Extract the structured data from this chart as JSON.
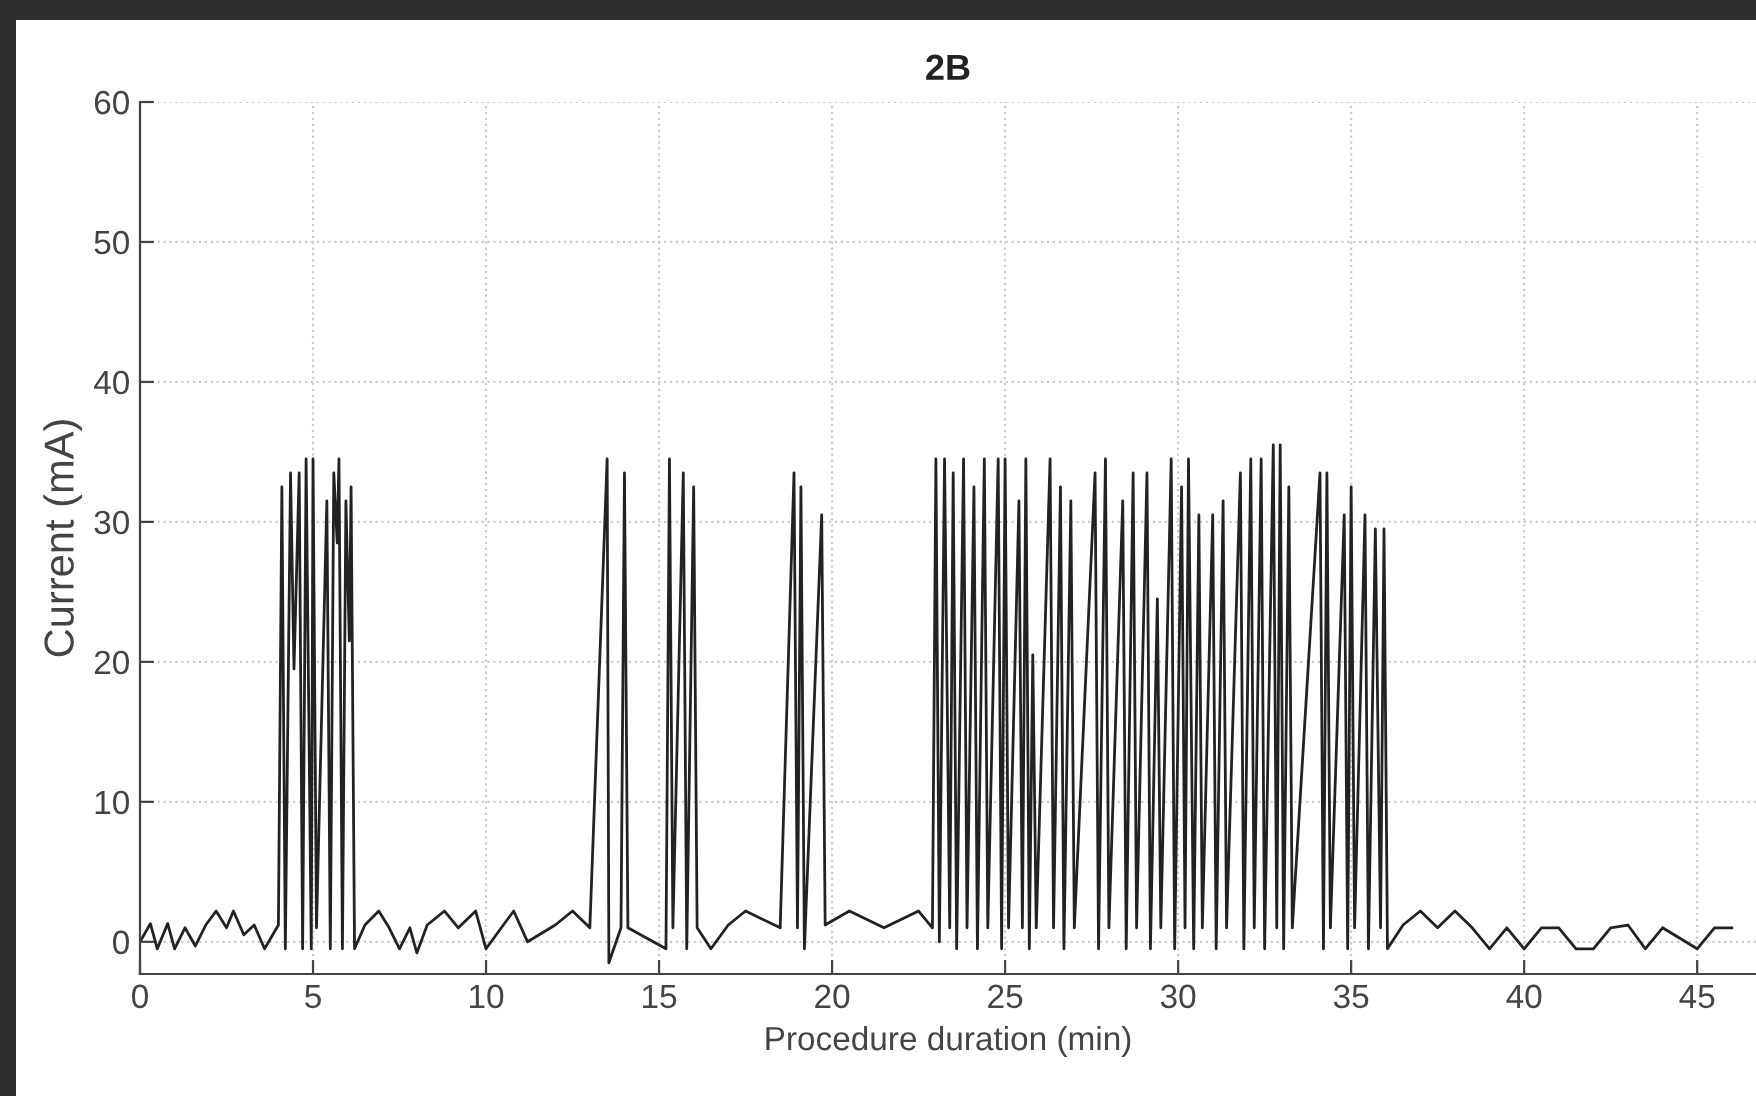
{
  "chart_data": {
    "type": "line",
    "title": "2B",
    "xlabel": "Procedure duration (min)",
    "ylabel": "Current (mA)",
    "xlim": [
      0,
      46.7
    ],
    "ylim": [
      -2.3,
      60
    ],
    "xticks": [
      0,
      5,
      10,
      15,
      20,
      25,
      30,
      35,
      40,
      45
    ],
    "yticks": [
      0,
      10,
      20,
      30,
      40,
      50,
      60
    ],
    "grid": true,
    "line_style": "solid",
    "marker": "none",
    "series": [
      {
        "color": "#222222",
        "x": [
          0,
          0.3,
          0.5,
          0.8,
          1.0,
          1.3,
          1.6,
          1.9,
          2.2,
          2.5,
          2.7,
          3.0,
          3.3,
          3.6,
          4.0,
          4.1,
          4.2,
          4.35,
          4.45,
          4.6,
          4.7,
          4.8,
          4.95,
          5.0,
          5.1,
          5.4,
          5.5,
          5.6,
          5.7,
          5.75,
          5.85,
          5.95,
          6.05,
          6.1,
          6.2,
          6.5,
          6.9,
          7.2,
          7.5,
          7.8,
          8.0,
          8.3,
          8.8,
          9.2,
          9.7,
          10.0,
          10.5,
          10.8,
          11.2,
          12.0,
          12.5,
          13.0,
          13.5,
          13.55,
          13.9,
          14.0,
          14.1,
          15.2,
          15.3,
          15.4,
          15.7,
          15.8,
          16.0,
          16.1,
          16.5,
          17.0,
          17.5,
          18.5,
          18.9,
          19.0,
          19.1,
          19.2,
          19.7,
          19.8,
          20.5,
          21.5,
          22.5,
          22.9,
          23.0,
          23.1,
          23.25,
          23.4,
          23.5,
          23.6,
          23.8,
          23.9,
          24.1,
          24.2,
          24.4,
          24.5,
          24.8,
          24.9,
          25.0,
          25.1,
          25.4,
          25.5,
          25.6,
          25.7,
          25.8,
          25.9,
          26.3,
          26.4,
          26.6,
          26.7,
          26.9,
          27.0,
          27.6,
          27.7,
          27.9,
          28.0,
          28.4,
          28.5,
          28.7,
          28.8,
          29.1,
          29.2,
          29.4,
          29.5,
          29.8,
          29.9,
          30.1,
          30.2,
          30.3,
          30.45,
          30.6,
          30.7,
          31.0,
          31.1,
          31.3,
          31.4,
          31.8,
          31.9,
          32.1,
          32.2,
          32.4,
          32.5,
          32.75,
          32.85,
          32.95,
          33.05,
          33.2,
          33.3,
          34.1,
          34.2,
          34.3,
          34.4,
          34.8,
          34.9,
          35.0,
          35.1,
          35.4,
          35.5,
          35.7,
          35.85,
          35.95,
          36.05,
          36.5,
          37.0,
          37.5,
          38.0,
          38.5,
          39.0,
          39.5,
          40.0,
          40.5,
          41.0,
          41.5,
          42.0,
          42.5,
          43.0,
          43.5,
          44.0,
          45.0,
          45.5,
          46.0
        ],
        "values": [
          0,
          1.3,
          -0.5,
          1.3,
          -0.5,
          1,
          -0.3,
          1.2,
          2.2,
          1,
          2.2,
          0.5,
          1.2,
          -0.5,
          1.2,
          32.5,
          -0.5,
          33.5,
          19.5,
          33.5,
          -0.5,
          34.5,
          -0.5,
          34.5,
          1,
          31.5,
          -0.5,
          33.5,
          28.5,
          34.5,
          -0.5,
          31.5,
          21.5,
          32.5,
          -0.5,
          1.2,
          2.2,
          1,
          -0.5,
          1,
          -0.8,
          1.2,
          2.2,
          1,
          2.2,
          -0.5,
          1.2,
          2.2,
          0,
          1.2,
          2.2,
          1,
          34.5,
          -1.5,
          1,
          33.5,
          1,
          -0.5,
          34.5,
          1,
          33.5,
          -0.5,
          32.5,
          1,
          -0.5,
          1.2,
          2.2,
          1,
          33.5,
          1,
          32.5,
          -0.5,
          30.5,
          1.2,
          2.2,
          1,
          2.2,
          1,
          34.5,
          0,
          34.5,
          1,
          33.5,
          -0.5,
          34.5,
          1,
          32.5,
          -0.5,
          34.5,
          1,
          34.5,
          -0.5,
          34.5,
          1,
          31.5,
          1,
          34.5,
          -0.5,
          20.5,
          1,
          34.5,
          1,
          32.5,
          -0.5,
          31.5,
          1,
          33.5,
          -0.5,
          34.5,
          1,
          31.5,
          -0.5,
          33.5,
          1,
          33.5,
          -0.5,
          24.5,
          1,
          34.5,
          -0.5,
          32.5,
          1,
          34.5,
          -0.5,
          30.5,
          1,
          30.5,
          -0.5,
          31.5,
          1,
          33.5,
          -0.5,
          34.5,
          1,
          34.5,
          -0.5,
          35.5,
          1,
          35.5,
          -0.5,
          32.5,
          1,
          33.5,
          -0.5,
          33.5,
          1,
          30.5,
          -0.5,
          32.5,
          1,
          30.5,
          -0.5,
          29.5,
          1,
          29.5,
          -0.5,
          1.2,
          2.2,
          1,
          2.2,
          1,
          -0.5,
          1,
          -0.5,
          1,
          1,
          -0.5,
          -0.5,
          1,
          1.2,
          -0.5,
          1,
          -0.5,
          1,
          1
        ]
      }
    ]
  }
}
